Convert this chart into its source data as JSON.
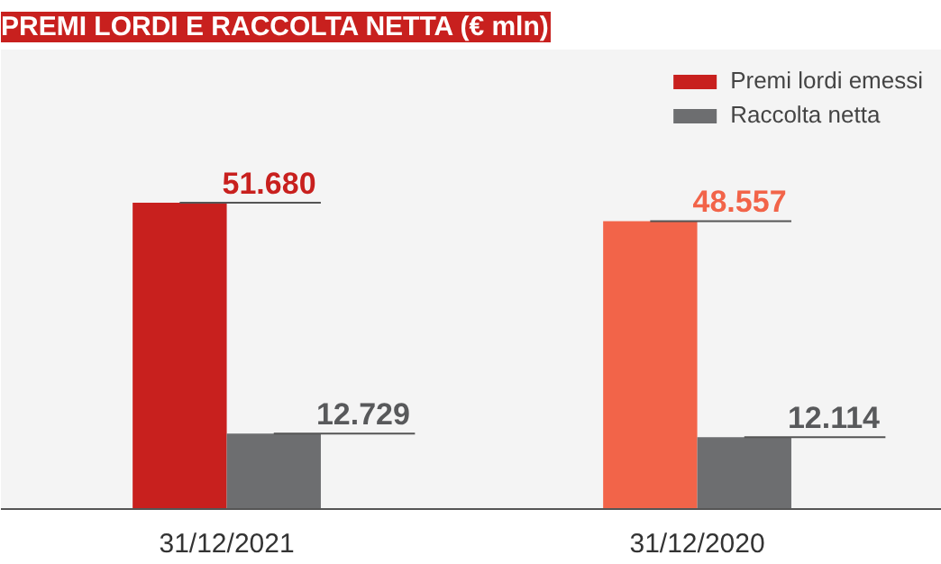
{
  "chart_data": {
    "type": "bar",
    "title": "PREMI LORDI E RACCOLTA NETTA (€ mln)",
    "categories": [
      "31/12/2021",
      "31/12/2020"
    ],
    "series": [
      {
        "name": "Premi lordi emessi",
        "color": "#c8201e",
        "colors": [
          "#c8201e",
          "#f26449"
        ],
        "values": [
          51680,
          48557
        ],
        "value_labels": [
          "51.680",
          "48.557"
        ]
      },
      {
        "name": "Raccolta netta",
        "color": "#6d6e70",
        "values": [
          12729,
          12114
        ],
        "value_labels": [
          "12.729",
          "12.114"
        ]
      }
    ],
    "legend": "top right",
    "grid": false
  }
}
